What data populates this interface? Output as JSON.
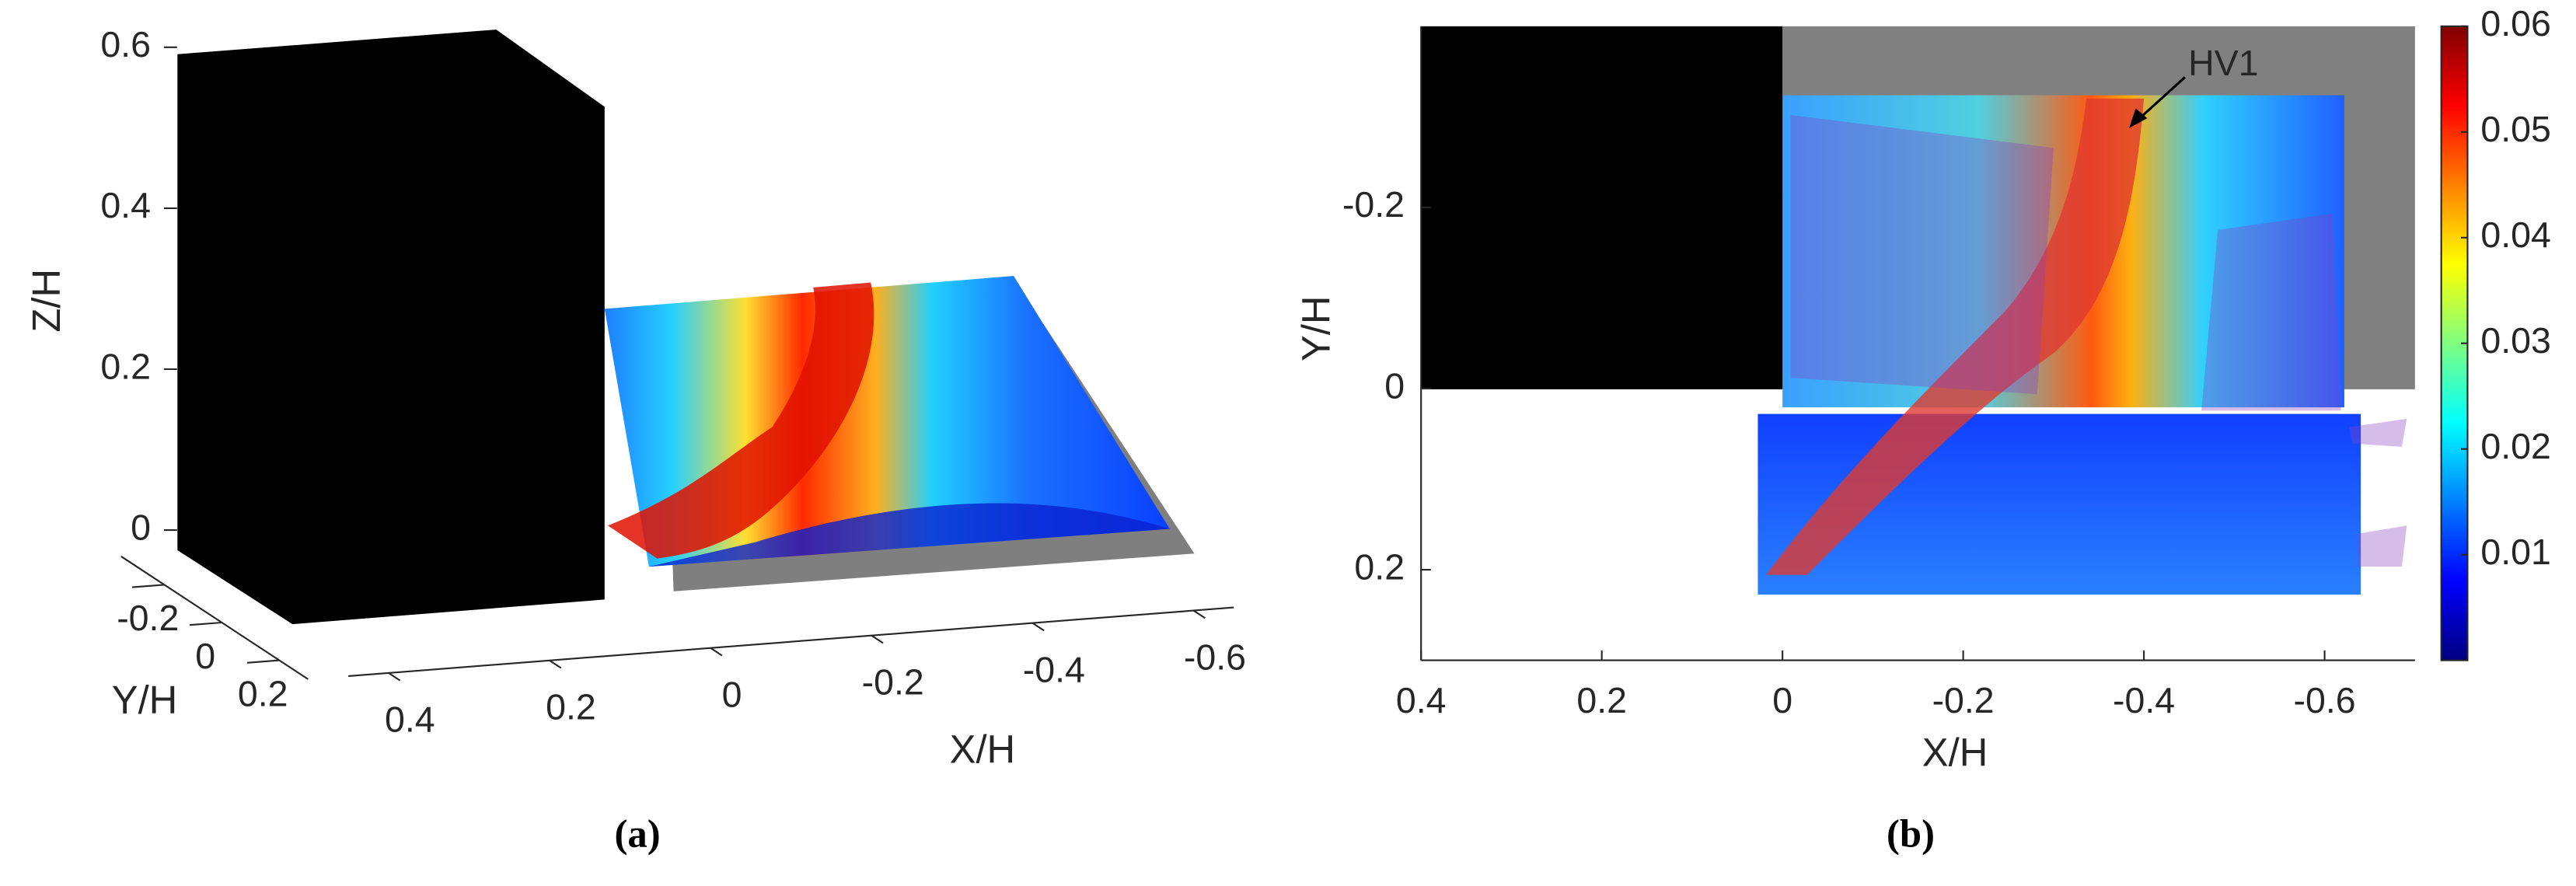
{
  "chart_data": [
    {
      "type": "surface3d",
      "caption": "(a)",
      "xlabel": "X/H",
      "ylabel": "Y/H",
      "zlabel": "Z/H",
      "xticks": [
        0.4,
        0.2,
        0,
        -0.2,
        -0.4,
        -0.6
      ],
      "yticks": [
        -0.2,
        0,
        0.2
      ],
      "zticks": [
        0,
        0.2,
        0.4,
        0.6
      ]
    },
    {
      "type": "contour",
      "caption": "(b)",
      "xlabel": "X/H",
      "ylabel": "Y/H",
      "annotation": "HV1",
      "xlim": [
        0.4,
        -0.7
      ],
      "ylim": [
        -0.4,
        0.3
      ],
      "xticks": [
        0.4,
        0.2,
        0,
        -0.2,
        -0.4,
        -0.6
      ],
      "yticks": [
        -0.2,
        0,
        0.2
      ],
      "colorbar": {
        "colormap": "jet",
        "lim": [
          0,
          0.06
        ],
        "ticks": [
          0.01,
          0.02,
          0.03,
          0.04,
          0.05,
          0.06
        ]
      }
    }
  ]
}
